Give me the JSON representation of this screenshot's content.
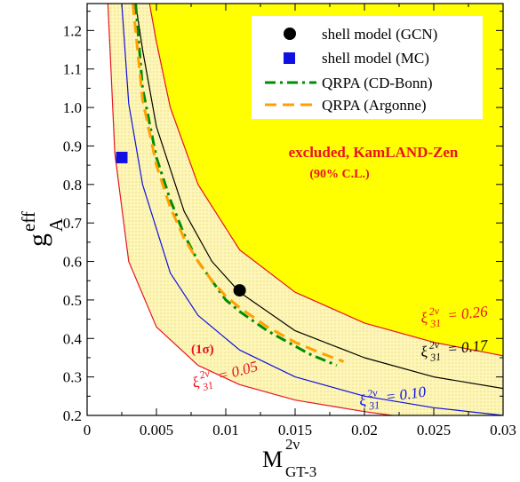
{
  "chart_data": {
    "type": "line",
    "title": "",
    "xlabel": "M",
    "xlabel_sup": "2ν",
    "xlabel_sub": "GT-3",
    "ylabel": "g",
    "ylabel_sup": "eff",
    "ylabel_sub": "A",
    "xlim": [
      0,
      0.03
    ],
    "ylim": [
      0.2,
      1.27
    ],
    "x_ticks": [
      0,
      0.005,
      0.01,
      0.015,
      0.02,
      0.025,
      0.03
    ],
    "x_tick_labels": [
      "0",
      "0.005",
      "0.01",
      "0.015",
      "0.02",
      "0.025",
      "0.03"
    ],
    "y_ticks": [
      0.2,
      0.3,
      0.4,
      0.5,
      0.6,
      0.7,
      0.8,
      0.9,
      1.0,
      1.1,
      1.2
    ],
    "y_tick_labels": [
      "0.2",
      "0.3",
      "0.4",
      "0.5",
      "0.6",
      "0.7",
      "0.8",
      "0.9",
      "1.0",
      "1.1",
      "1.2"
    ],
    "grid": false,
    "legend_position": "top-right",
    "colors": {
      "excluded": "#ffff00",
      "band": "#fdf5b0",
      "red": "#e8141e",
      "blue": "#1010e0",
      "green": "#008c00",
      "orange": "#ffa000"
    },
    "contours": [
      {
        "name": "xi=0.05",
        "color": "red",
        "values": [
          [
            0.0015,
            1.27
          ],
          [
            0.002,
            0.88
          ],
          [
            0.003,
            0.6
          ],
          [
            0.005,
            0.43
          ],
          [
            0.008,
            0.33
          ],
          [
            0.011,
            0.28
          ],
          [
            0.015,
            0.24
          ],
          [
            0.02,
            0.21
          ],
          [
            0.022,
            0.2
          ]
        ]
      },
      {
        "name": "xi=0.10",
        "color": "blue",
        "values": [
          [
            0.0025,
            1.27
          ],
          [
            0.003,
            1.01
          ],
          [
            0.004,
            0.8
          ],
          [
            0.006,
            0.57
          ],
          [
            0.008,
            0.46
          ],
          [
            0.011,
            0.37
          ],
          [
            0.015,
            0.3
          ],
          [
            0.02,
            0.25
          ],
          [
            0.025,
            0.22
          ],
          [
            0.03,
            0.2
          ]
        ]
      },
      {
        "name": "xi=0.17",
        "color": "black",
        "values": [
          [
            0.0035,
            1.27
          ],
          [
            0.004,
            1.15
          ],
          [
            0.005,
            0.95
          ],
          [
            0.007,
            0.73
          ],
          [
            0.009,
            0.6
          ],
          [
            0.011,
            0.52
          ],
          [
            0.015,
            0.42
          ],
          [
            0.02,
            0.35
          ],
          [
            0.025,
            0.3
          ],
          [
            0.03,
            0.27
          ]
        ]
      },
      {
        "name": "xi=0.26",
        "color": "red",
        "values": [
          [
            0.0045,
            1.27
          ],
          [
            0.005,
            1.17
          ],
          [
            0.006,
            1.0
          ],
          [
            0.008,
            0.8
          ],
          [
            0.011,
            0.63
          ],
          [
            0.015,
            0.52
          ],
          [
            0.02,
            0.44
          ],
          [
            0.025,
            0.39
          ],
          [
            0.03,
            0.355
          ]
        ]
      }
    ],
    "series": [
      {
        "name": "shell model (GCN)",
        "type": "scatter",
        "color": "#000000",
        "marker": "circle",
        "x": [
          0.011
        ],
        "y": [
          0.525
        ]
      },
      {
        "name": "shell model (MC)",
        "type": "scatter",
        "color": "#1010e0",
        "marker": "square",
        "x": [
          0.0025
        ],
        "y": [
          0.87
        ]
      },
      {
        "name": "QRPA (CD-Bonn)",
        "type": "line",
        "color": "#008c00",
        "dash": "dash-dot",
        "x": [
          0.0035,
          0.004,
          0.005,
          0.006,
          0.007,
          0.008,
          0.009,
          0.01,
          0.011,
          0.012,
          0.013,
          0.014,
          0.015,
          0.016,
          0.017,
          0.018
        ],
        "y": [
          1.27,
          1.05,
          0.87,
          0.76,
          0.67,
          0.6,
          0.55,
          0.5,
          0.47,
          0.445,
          0.42,
          0.4,
          0.38,
          0.36,
          0.345,
          0.33
        ]
      },
      {
        "name": "QRPA (Argonne)",
        "type": "line",
        "color": "#ffa000",
        "dash": "dashed",
        "x": [
          0.0033,
          0.004,
          0.005,
          0.006,
          0.007,
          0.008,
          0.009,
          0.01,
          0.011,
          0.012,
          0.013,
          0.014,
          0.015,
          0.016,
          0.017,
          0.0185
        ],
        "y": [
          1.27,
          1.02,
          0.85,
          0.74,
          0.66,
          0.6,
          0.55,
          0.51,
          0.48,
          0.455,
          0.43,
          0.41,
          0.39,
          0.375,
          0.36,
          0.34
        ]
      }
    ],
    "annotations": [
      {
        "id": "excluded",
        "text": "excluded, KamLAND-Zen"
      },
      {
        "id": "cl",
        "text": "(90% C.L.)"
      },
      {
        "id": "sigma",
        "text": "(1σ)"
      },
      {
        "id": "xi_026",
        "xi": "ξ",
        "sub": "31",
        "sup": "2ν",
        "value": "= 0.26"
      },
      {
        "id": "xi_017",
        "xi": "ξ",
        "sub": "31",
        "sup": "2ν",
        "value": "= 0.17"
      },
      {
        "id": "xi_010",
        "xi": "ξ",
        "sub": "31",
        "sup": "2ν",
        "value": "= 0.10"
      },
      {
        "id": "xi_005",
        "xi": "ξ",
        "sub": "31",
        "sup": "2ν",
        "value": "= 0.05"
      }
    ]
  }
}
